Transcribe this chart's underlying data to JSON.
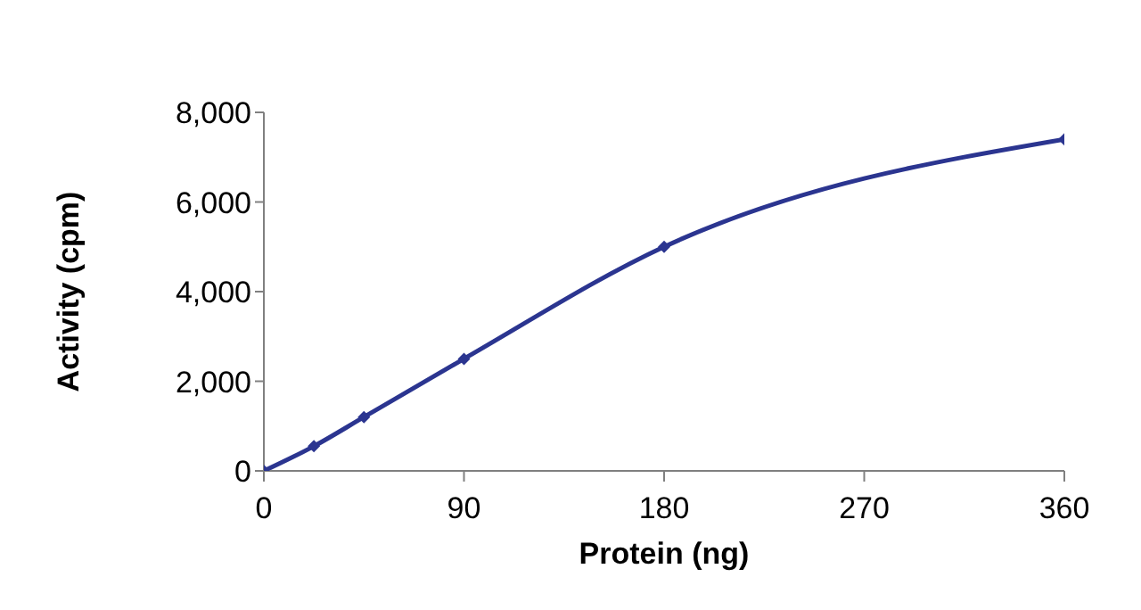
{
  "chart_data": {
    "type": "line",
    "xlabel": "Protein (ng)",
    "ylabel": "Activity (cpm)",
    "x": [
      0,
      22.5,
      45,
      90,
      180,
      360
    ],
    "series": [
      {
        "color": "#2b3590",
        "values": [
          0,
          550,
          1200,
          2500,
          5000,
          7400
        ]
      }
    ],
    "xlim": [
      0,
      360
    ],
    "xticks": [
      0,
      90,
      180,
      270,
      360
    ],
    "ylim": [
      0,
      8000
    ],
    "yticks": [
      {
        "value": 0,
        "label": "0"
      },
      {
        "value": 2000,
        "label": "2,000"
      },
      {
        "value": 4000,
        "label": "4,000"
      },
      {
        "value": 6000,
        "label": "6,000"
      },
      {
        "value": 8000,
        "label": "8,000"
      }
    ],
    "grid": false,
    "legend": false,
    "marker": "diamond",
    "line_style": "solid"
  }
}
